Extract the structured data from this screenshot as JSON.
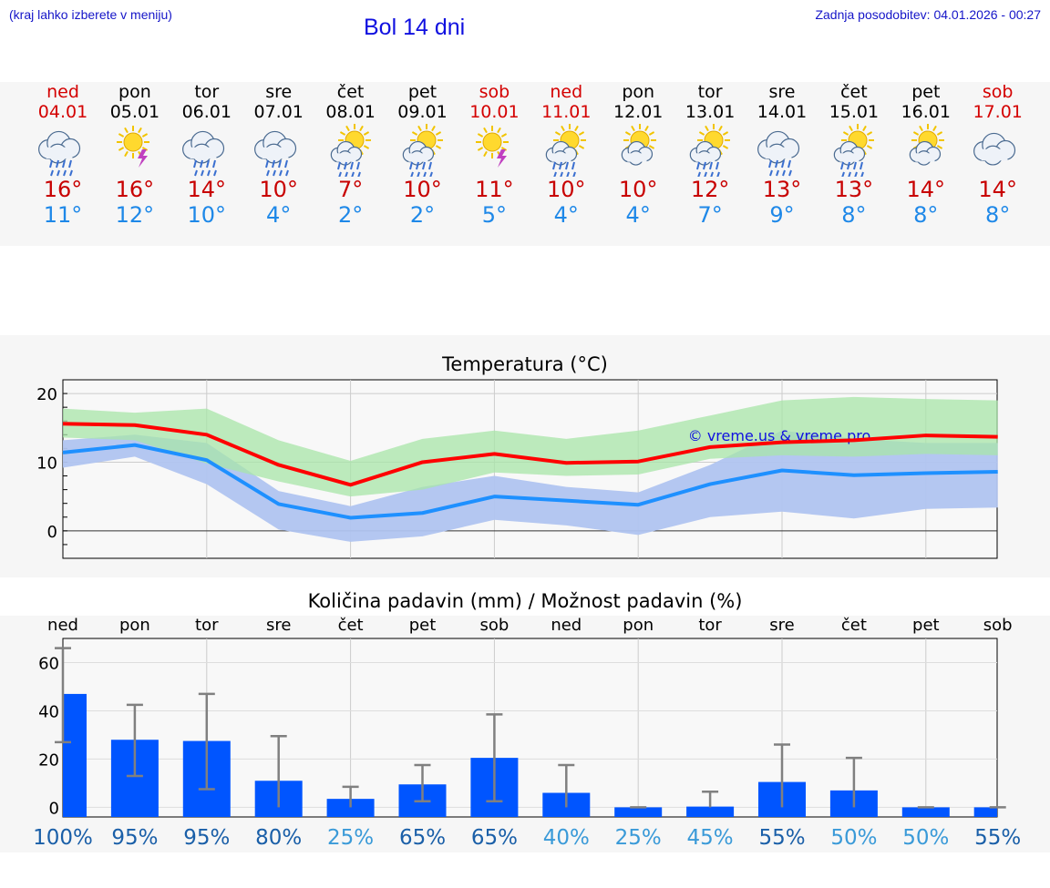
{
  "header": {
    "note": "(kraj lahko izberete v meniju)",
    "title": "Bol 14 dni",
    "updated": "Zadnja posodobitev: 04.01.2026 - 00:27"
  },
  "colors": {
    "max": "#ff0000",
    "min": "#1e90ff",
    "bar": "#0055ff",
    "band_max": "#a8e6a8",
    "band_min": "#b0c4f0"
  },
  "days": [
    {
      "name": "ned",
      "date": "04.01",
      "weekend": true,
      "icon": "rain-cloud-icon",
      "tmax": "16°",
      "tmin": "11°",
      "prob": "100%"
    },
    {
      "name": "pon",
      "date": "05.01",
      "weekend": false,
      "icon": "sun-thunder-icon",
      "tmax": "16°",
      "tmin": "12°",
      "prob": "95%"
    },
    {
      "name": "tor",
      "date": "06.01",
      "weekend": false,
      "icon": "rain-cloud-icon",
      "tmax": "14°",
      "tmin": "10°",
      "prob": "95%"
    },
    {
      "name": "sre",
      "date": "07.01",
      "weekend": false,
      "icon": "rain-cloud-icon",
      "tmax": "10°",
      "tmin": "4°",
      "prob": "80%"
    },
    {
      "name": "čet",
      "date": "08.01",
      "weekend": false,
      "icon": "sun-cloud-rain-icon",
      "tmax": "7°",
      "tmin": "2°",
      "prob": "25%"
    },
    {
      "name": "pet",
      "date": "09.01",
      "weekend": false,
      "icon": "sun-cloud-rain-icon",
      "tmax": "10°",
      "tmin": "2°",
      "prob": "65%"
    },
    {
      "name": "sob",
      "date": "10.01",
      "weekend": true,
      "icon": "sun-thunder-icon",
      "tmax": "11°",
      "tmin": "5°",
      "prob": "65%"
    },
    {
      "name": "ned",
      "date": "11.01",
      "weekend": true,
      "icon": "sun-cloud-rain-icon",
      "tmax": "10°",
      "tmin": "4°",
      "prob": "40%"
    },
    {
      "name": "pon",
      "date": "12.01",
      "weekend": false,
      "icon": "sun-cloud-icon",
      "tmax": "10°",
      "tmin": "4°",
      "prob": "25%"
    },
    {
      "name": "tor",
      "date": "13.01",
      "weekend": false,
      "icon": "sun-cloud-rain-icon",
      "tmax": "12°",
      "tmin": "7°",
      "prob": "45%"
    },
    {
      "name": "sre",
      "date": "14.01",
      "weekend": false,
      "icon": "rain-cloud-icon",
      "tmax": "13°",
      "tmin": "9°",
      "prob": "55%"
    },
    {
      "name": "čet",
      "date": "15.01",
      "weekend": false,
      "icon": "sun-cloud-rain-icon",
      "tmax": "13°",
      "tmin": "8°",
      "prob": "50%"
    },
    {
      "name": "pet",
      "date": "16.01",
      "weekend": false,
      "icon": "sun-cloud-icon",
      "tmax": "14°",
      "tmin": "8°",
      "prob": "50%"
    },
    {
      "name": "sob",
      "date": "17.01",
      "weekend": true,
      "icon": "cloud-icon",
      "tmax": "14°",
      "tmin": "8°",
      "prob": "55%"
    }
  ],
  "chart_data": [
    {
      "type": "line",
      "title": "Temperatura (°C)",
      "ylim": [
        -4,
        22
      ],
      "yticks": [
        0,
        10,
        20
      ],
      "watermark": "© vreme.us & vreme.pro",
      "x": [
        0,
        1,
        2,
        3,
        4,
        5,
        6,
        7,
        8,
        9,
        10,
        11,
        12,
        13
      ],
      "series": [
        {
          "name": "max",
          "values": [
            15.6,
            15.4,
            14.0,
            9.6,
            6.7,
            10.0,
            11.2,
            9.9,
            10.1,
            12.2,
            12.9,
            13.2,
            13.9,
            13.7
          ]
        },
        {
          "name": "min",
          "values": [
            11.4,
            12.5,
            10.3,
            3.9,
            1.9,
            2.6,
            5.0,
            4.4,
            3.8,
            6.8,
            8.8,
            8.1,
            8.4,
            8.6
          ]
        }
      ],
      "bands": [
        {
          "name": "max_range",
          "lower": [
            13.6,
            13.2,
            9.8,
            7.2,
            5.0,
            6.0,
            8.5,
            8.0,
            8.2,
            10.5,
            11.0,
            10.8,
            11.2,
            11.0
          ],
          "upper": [
            17.8,
            17.2,
            17.8,
            13.2,
            10.2,
            13.4,
            14.6,
            13.4,
            14.6,
            16.8,
            19.0,
            19.5,
            19.2,
            19.0
          ]
        },
        {
          "name": "min_range",
          "lower": [
            9.2,
            10.8,
            6.8,
            0.2,
            -1.6,
            -0.8,
            1.6,
            0.8,
            -0.6,
            2.0,
            2.8,
            1.8,
            3.2,
            3.4
          ],
          "upper": [
            13.2,
            14.0,
            12.8,
            5.8,
            3.6,
            6.4,
            8.0,
            6.4,
            5.6,
            9.6,
            14.6,
            13.4,
            12.8,
            12.8
          ]
        }
      ]
    },
    {
      "type": "bar",
      "title": "Količina padavin (mm) / Možnost padavin (%)",
      "ylim": [
        -4,
        70
      ],
      "yticks": [
        0,
        20,
        40,
        60
      ],
      "categories": [
        "ned",
        "pon",
        "tor",
        "sre",
        "čet",
        "pet",
        "sob",
        "ned",
        "pon",
        "tor",
        "sre",
        "čet",
        "pet",
        "sob"
      ],
      "values": [
        47,
        28,
        27.5,
        11,
        3.5,
        9.5,
        20.5,
        6,
        0,
        0.3,
        10.5,
        7,
        0,
        0
      ],
      "err_low": [
        27,
        13,
        7.5,
        0,
        0,
        2.5,
        2.5,
        0,
        0,
        0,
        0,
        0,
        0,
        0
      ],
      "err_high": [
        66,
        42.5,
        47,
        29.5,
        8.5,
        17.5,
        38.5,
        17.5,
        0,
        6.5,
        26,
        20.5,
        0,
        0
      ]
    }
  ]
}
